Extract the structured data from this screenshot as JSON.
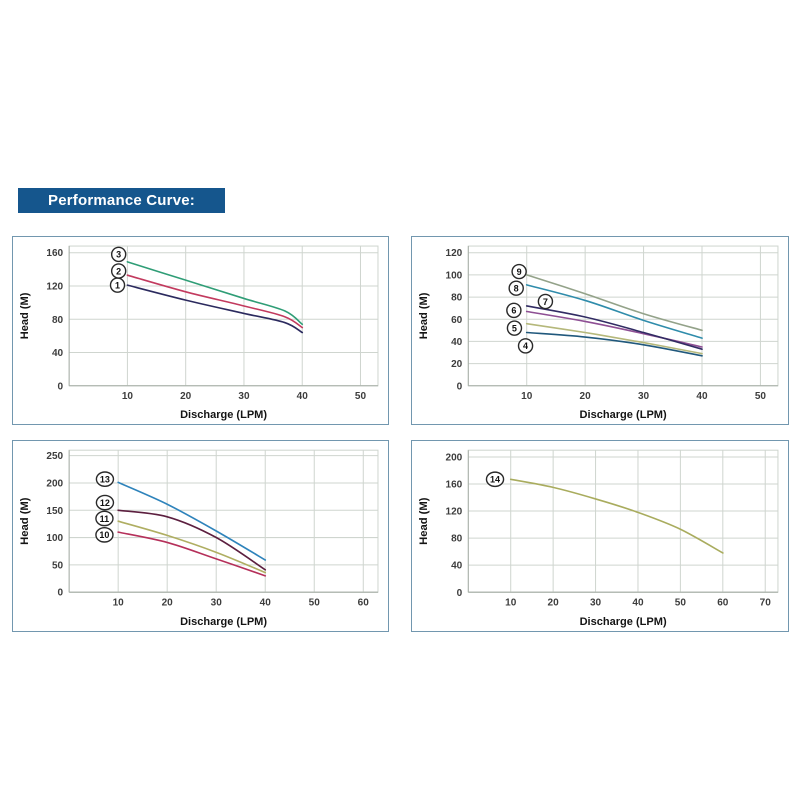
{
  "header": {
    "title": "Performance Curve:"
  },
  "theme": {
    "title_bg": "#15568D",
    "title_text": "#FFFFFF",
    "box_border": "#7297AF",
    "grid_color": "#CFD5CF",
    "axis_line_color": "#A8B0A8",
    "tick_text_color": "#3D3D3D",
    "axis_title_color": "#141414",
    "marker_stroke": "#2A2A2A",
    "marker_fill": "#FFFFFF"
  },
  "chart_data": [
    {
      "type": "line",
      "title": "",
      "xlabel": "Discharge (LPM)",
      "ylabel": "Head (M)",
      "xlim": [
        0,
        53
      ],
      "ylim": [
        0,
        168
      ],
      "xticks": [
        10,
        20,
        30,
        40,
        50
      ],
      "yticks": [
        0,
        40,
        80,
        120,
        160
      ],
      "grid": true,
      "legend_position": "circled-numbers-on-plot",
      "series": [
        {
          "name": "1",
          "color": "#2B2A5E",
          "x": [
            10,
            20,
            30,
            37,
            40
          ],
          "y": [
            121,
            103,
            87,
            76,
            64
          ],
          "label_at": [
            8.3,
            121
          ]
        },
        {
          "name": "2",
          "color": "#C23A5E",
          "x": [
            10,
            20,
            30,
            37,
            40
          ],
          "y": [
            133,
            113,
            96,
            83,
            70
          ],
          "label_at": [
            8.5,
            138
          ]
        },
        {
          "name": "3",
          "color": "#2F9D76",
          "x": [
            10,
            20,
            30,
            37,
            40
          ],
          "y": [
            149,
            127,
            105,
            90,
            74
          ],
          "label_at": [
            8.5,
            158
          ]
        }
      ]
    },
    {
      "type": "line",
      "title": "",
      "xlabel": "Discharge (LPM)",
      "ylabel": "Head (M)",
      "xlim": [
        0,
        53
      ],
      "ylim": [
        0,
        126
      ],
      "xticks": [
        10,
        20,
        30,
        40,
        50
      ],
      "yticks": [
        0,
        20,
        40,
        60,
        80,
        100,
        120
      ],
      "grid": true,
      "legend_position": "circled-numbers-on-plot",
      "series": [
        {
          "name": "4",
          "color": "#20587C",
          "x": [
            10,
            20,
            30,
            40
          ],
          "y": [
            48,
            44,
            37,
            27
          ],
          "label_at": [
            9.8,
            36
          ]
        },
        {
          "name": "5",
          "color": "#B5B87B",
          "x": [
            10,
            20,
            30,
            40
          ],
          "y": [
            56,
            48,
            39,
            29
          ],
          "label_at": [
            7.9,
            52
          ]
        },
        {
          "name": "6",
          "color": "#8E4F94",
          "x": [
            10,
            20,
            30,
            40
          ],
          "y": [
            67,
            58,
            47,
            35
          ],
          "label_at": [
            7.8,
            68
          ]
        },
        {
          "name": "7",
          "color": "#312B63",
          "x": [
            10,
            20,
            30,
            40
          ],
          "y": [
            72,
            62,
            48,
            33
          ],
          "label_at": [
            13.2,
            76
          ]
        },
        {
          "name": "8",
          "color": "#2F8CAB",
          "x": [
            10,
            20,
            30,
            40
          ],
          "y": [
            91,
            77,
            59,
            43
          ],
          "label_at": [
            8.2,
            88
          ]
        },
        {
          "name": "9",
          "color": "#93A289",
          "x": [
            10,
            20,
            30,
            40
          ],
          "y": [
            100,
            83,
            65,
            50
          ],
          "label_at": [
            8.7,
            103
          ]
        }
      ]
    },
    {
      "type": "line",
      "title": "",
      "xlabel": "Discharge (LPM)",
      "ylabel": "Head (M)",
      "xlim": [
        0,
        63
      ],
      "ylim": [
        0,
        260
      ],
      "xticks": [
        10,
        20,
        30,
        40,
        50,
        60
      ],
      "yticks": [
        0,
        50,
        100,
        150,
        200,
        250
      ],
      "grid": true,
      "legend_position": "circled-numbers-on-plot",
      "series": [
        {
          "name": "10",
          "color": "#B5305A",
          "x": [
            10,
            20,
            30,
            40
          ],
          "y": [
            110,
            91,
            61,
            30
          ],
          "label_at": [
            7.2,
            105
          ]
        },
        {
          "name": "11",
          "color": "#AFAE62",
          "x": [
            10,
            20,
            30,
            40
          ],
          "y": [
            130,
            104,
            73,
            36
          ],
          "label_at": [
            7.2,
            135
          ]
        },
        {
          "name": "12",
          "color": "#5C1F3F",
          "x": [
            10,
            20,
            30,
            40
          ],
          "y": [
            150,
            138,
            100,
            41
          ],
          "label_at": [
            7.3,
            164
          ]
        },
        {
          "name": "13",
          "color": "#2E83BB",
          "x": [
            10,
            20,
            30,
            40
          ],
          "y": [
            201,
            161,
            112,
            59
          ],
          "label_at": [
            7.3,
            207
          ]
        }
      ]
    },
    {
      "type": "line",
      "title": "",
      "xlabel": "Discharge (LPM)",
      "ylabel": "Head (M)",
      "xlim": [
        0,
        73
      ],
      "ylim": [
        0,
        210
      ],
      "xticks": [
        10,
        20,
        30,
        40,
        50,
        60,
        70
      ],
      "yticks": [
        0,
        40,
        80,
        120,
        160,
        200
      ],
      "grid": true,
      "legend_position": "circled-numbers-on-plot",
      "series": [
        {
          "name": "14",
          "color": "#A9AC5E",
          "x": [
            10,
            20,
            30,
            40,
            50,
            60
          ],
          "y": [
            167,
            155,
            138,
            118,
            93,
            58
          ],
          "label_at": [
            6.3,
            167
          ]
        }
      ]
    }
  ]
}
